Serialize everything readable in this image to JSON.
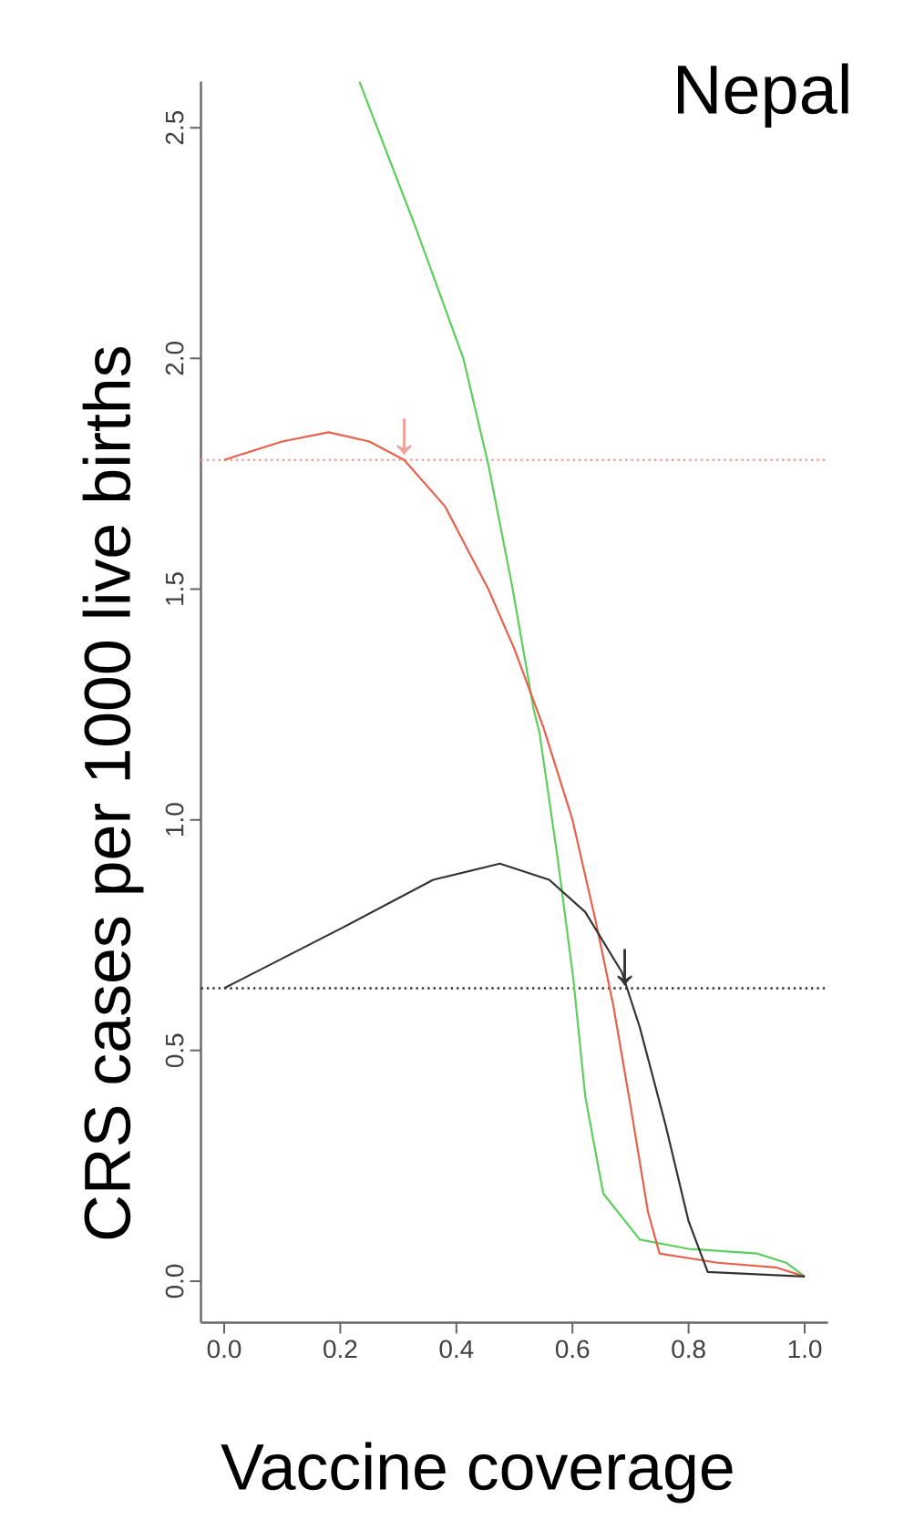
{
  "chart_data": {
    "type": "line",
    "title": "Nepal",
    "xlabel": "Vaccine coverage",
    "ylabel": "CRS cases per 1000 live births",
    "xlim": [
      -0.04,
      1.04
    ],
    "ylim": [
      -0.09,
      2.6
    ],
    "xticks": [
      {
        "value": 0,
        "label": "0.0"
      },
      0.2,
      0.4,
      0.6,
      0.8,
      {
        "value": 1,
        "label": "1.0"
      }
    ],
    "yticks": [
      {
        "value": 0,
        "label": "0.0"
      },
      0.5,
      {
        "value": 1,
        "label": "1.0"
      },
      1.5,
      {
        "value": 2,
        "label": "2.0"
      },
      2.5
    ],
    "series": [
      {
        "color": "#5ccf5c",
        "x": [
          0.233,
          0.328,
          0.412,
          0.455,
          0.497,
          0.533,
          0.543,
          0.574,
          0.601,
          0.622,
          0.653,
          0.716,
          0.8,
          0.918,
          0.968,
          1.0
        ],
        "values": [
          2.6,
          2.29,
          2.0,
          1.77,
          1.5,
          1.24,
          1.19,
          0.92,
          0.66,
          0.4,
          0.19,
          0.09,
          0.07,
          0.06,
          0.04,
          0.01
        ]
      },
      {
        "color": "#e8604c",
        "x": [
          0,
          0.05,
          0.1,
          0.18,
          0.25,
          0.31,
          0.38,
          0.455,
          0.5,
          0.55,
          0.6,
          0.64,
          0.67,
          0.7,
          0.73,
          0.75,
          0.8,
          0.85,
          0.95,
          1.0
        ],
        "values": [
          1.78,
          1.8,
          1.82,
          1.84,
          1.82,
          1.78,
          1.68,
          1.5,
          1.37,
          1.2,
          1.0,
          0.78,
          0.6,
          0.38,
          0.15,
          0.06,
          0.05,
          0.04,
          0.03,
          0.01
        ]
      },
      {
        "color": "#333333",
        "x": [
          0,
          0.202,
          0.36,
          0.475,
          0.56,
          0.622,
          0.685,
          0.716,
          0.76,
          0.8,
          0.833,
          1.0
        ],
        "values": [
          0.635,
          0.765,
          0.87,
          0.905,
          0.87,
          0.8,
          0.67,
          0.55,
          0.34,
          0.13,
          0.02,
          0.01
        ]
      }
    ],
    "ref_lines": [
      {
        "axis": "y",
        "value": 1.78,
        "color": "#f4a09a",
        "line_style": "dotted"
      },
      {
        "axis": "y",
        "value": 0.635,
        "color": "#333333",
        "line_style": "dotted"
      }
    ],
    "annotations": [
      {
        "text": "↓",
        "x": 0.31,
        "y": 1.79
      },
      {
        "text": "↓",
        "x": 0.69,
        "y": 0.64
      }
    ]
  }
}
